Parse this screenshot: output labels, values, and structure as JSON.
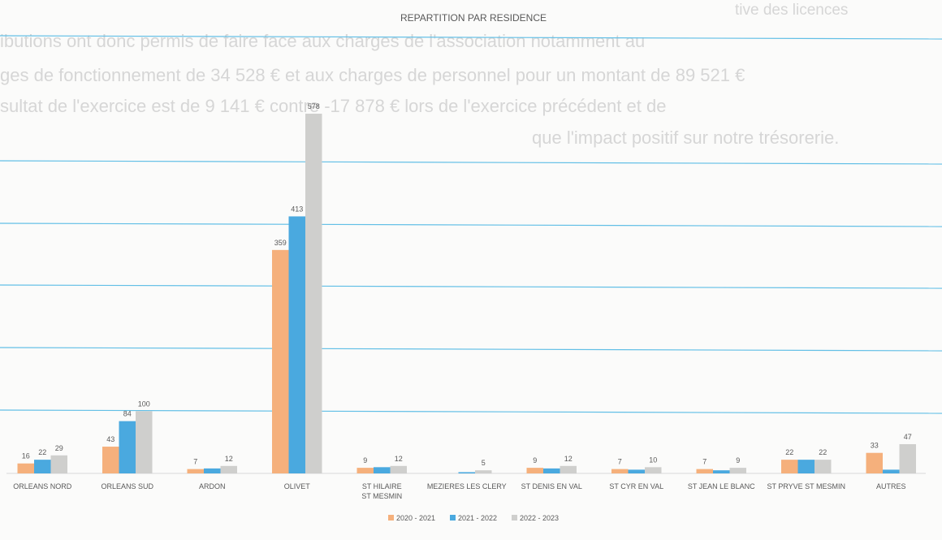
{
  "bleed_text": [
    "tive des licences",
    "ibutions ont donc permis de faire face aux charges de l'association notamment au",
    "ges de fonctionnement de 34 528 € et aux charges de personnel pour un montant de 89 521 €",
    "sultat de l'exercice est de 9 141 € contre -17 878 € lors de l'exercice précédent et de",
    "que l'impact positif sur notre trésorerie."
  ],
  "chart_data": {
    "type": "bar",
    "title": "REPARTITION PAR RESIDENCE",
    "xlabel": "",
    "ylabel": "",
    "ylim": [
      0,
      578
    ],
    "grid": true,
    "legend_position": "bottom",
    "categories": [
      "ORLEANS NORD",
      "ORLEANS SUD",
      "ARDON",
      "OLIVET",
      "ST HILAIRE ST MESMIN",
      "MEZIERES LES CLERY",
      "ST DENIS EN VAL",
      "ST CYR EN VAL",
      "ST JEAN LE BLANC",
      "ST PRYVE ST MESMIN",
      "AUTRES"
    ],
    "series": [
      {
        "name": "2020 - 2021",
        "color": "#f5b07c",
        "values": [
          16,
          43,
          7,
          359,
          9,
          0,
          9,
          7,
          7,
          22,
          33
        ],
        "labels": [
          "16",
          "43",
          "7",
          "359",
          "9",
          "",
          "9",
          "7",
          "7",
          "22",
          "33"
        ]
      },
      {
        "name": "2021 - 2022",
        "color": "#4aa9df",
        "values": [
          22,
          84,
          8,
          413,
          10,
          2,
          8,
          6,
          5,
          22,
          6
        ],
        "labels": [
          "22",
          "84",
          "",
          "413",
          "",
          "",
          "",
          "",
          "",
          "",
          ""
        ]
      },
      {
        "name": "2022 - 2023",
        "color": "#cfcfcd",
        "values": [
          29,
          100,
          12,
          578,
          12,
          5,
          12,
          10,
          9,
          22,
          47
        ],
        "labels": [
          "29",
          "100",
          "12",
          "578",
          "12",
          "5",
          "12",
          "10",
          "9",
          "22",
          "47"
        ]
      }
    ],
    "colors": {
      "grid": "#62bfe6",
      "text": "#595959"
    }
  }
}
